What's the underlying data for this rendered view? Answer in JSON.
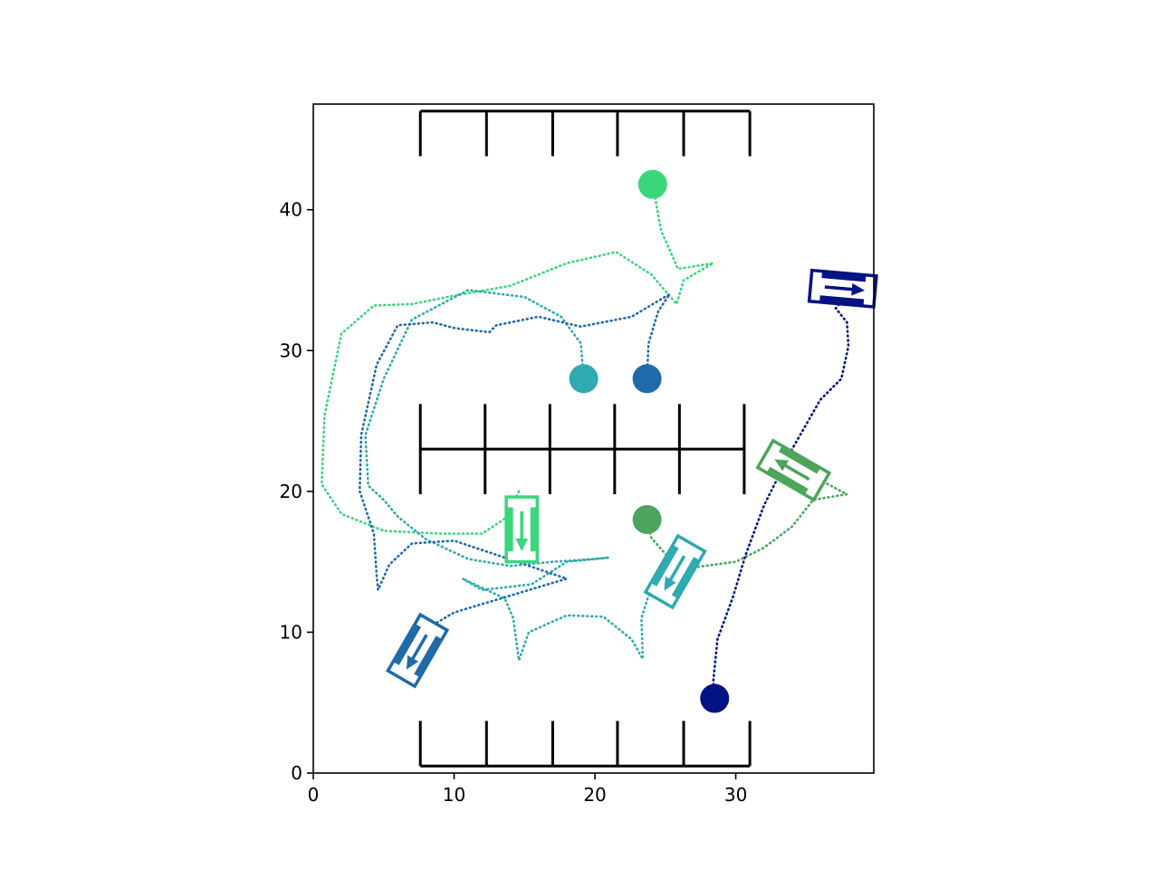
{
  "chart_data": {
    "type": "scatter",
    "title": "",
    "xlabel": "",
    "ylabel": "",
    "xlim": [
      0,
      39.8
    ],
    "ylim": [
      0,
      47.5
    ],
    "grid": false,
    "x_ticks": [
      0,
      10,
      20,
      30
    ],
    "y_ticks": [
      0,
      10,
      20,
      30,
      40
    ],
    "x_tick_labels": [
      "0",
      "10",
      "20",
      "30"
    ],
    "y_tick_labels": [
      "0",
      "10",
      "20",
      "30",
      "40"
    ],
    "parking_lines": [
      {
        "name": "top-row-rail",
        "x": [
          7.6,
          31.0
        ],
        "y": [
          47.0,
          47.0
        ]
      },
      {
        "name": "top-row-divider-1",
        "x": [
          7.6,
          7.6
        ],
        "y": [
          43.8,
          47.0
        ]
      },
      {
        "name": "top-row-divider-2",
        "x": [
          12.3,
          12.3
        ],
        "y": [
          43.8,
          47.0
        ]
      },
      {
        "name": "top-row-divider-3",
        "x": [
          17.0,
          17.0
        ],
        "y": [
          43.8,
          47.0
        ]
      },
      {
        "name": "top-row-divider-4",
        "x": [
          21.6,
          21.6
        ],
        "y": [
          43.8,
          47.0
        ]
      },
      {
        "name": "top-row-divider-5",
        "x": [
          26.3,
          26.3
        ],
        "y": [
          43.8,
          47.0
        ]
      },
      {
        "name": "top-row-divider-6",
        "x": [
          31.0,
          31.0
        ],
        "y": [
          43.8,
          47.0
        ]
      },
      {
        "name": "middle-row-rail",
        "x": [
          7.6,
          30.6
        ],
        "y": [
          23.0,
          23.0
        ]
      },
      {
        "name": "middle-row-divider-1",
        "x": [
          7.6,
          7.6
        ],
        "y": [
          19.8,
          26.2
        ]
      },
      {
        "name": "middle-row-divider-2",
        "x": [
          12.2,
          12.2
        ],
        "y": [
          19.8,
          26.2
        ]
      },
      {
        "name": "middle-row-divider-3",
        "x": [
          16.8,
          16.8
        ],
        "y": [
          19.8,
          26.2
        ]
      },
      {
        "name": "middle-row-divider-4",
        "x": [
          21.4,
          21.4
        ],
        "y": [
          19.8,
          26.2
        ]
      },
      {
        "name": "middle-row-divider-5",
        "x": [
          26.0,
          26.0
        ],
        "y": [
          19.8,
          26.2
        ]
      },
      {
        "name": "middle-row-divider-6",
        "x": [
          30.6,
          30.6
        ],
        "y": [
          19.8,
          26.2
        ]
      },
      {
        "name": "bottom-row-rail",
        "x": [
          7.6,
          31.0
        ],
        "y": [
          0.5,
          0.5
        ]
      },
      {
        "name": "bottom-row-divider-1",
        "x": [
          7.6,
          7.6
        ],
        "y": [
          0.5,
          3.7
        ]
      },
      {
        "name": "bottom-row-divider-2",
        "x": [
          12.3,
          12.3
        ],
        "y": [
          0.5,
          3.7
        ]
      },
      {
        "name": "bottom-row-divider-3",
        "x": [
          17.0,
          17.0
        ],
        "y": [
          0.5,
          3.7
        ]
      },
      {
        "name": "bottom-row-divider-4",
        "x": [
          21.6,
          21.6
        ],
        "y": [
          0.5,
          3.7
        ]
      },
      {
        "name": "bottom-row-divider-5",
        "x": [
          26.3,
          26.3
        ],
        "y": [
          0.5,
          3.7
        ]
      },
      {
        "name": "bottom-row-divider-6",
        "x": [
          31.0,
          31.0
        ],
        "y": [
          0.5,
          3.7
        ]
      }
    ],
    "series": [
      {
        "color": "#3ad67c",
        "start": [
          24.1,
          41.8
        ],
        "vehicle": {
          "x": 14.8,
          "y": 17.3,
          "heading_deg": -90
        },
        "path": [
          [
            24.1,
            41.8
          ],
          [
            24.7,
            38.5
          ],
          [
            25.9,
            35.8
          ],
          [
            28.4,
            36.2
          ],
          [
            26.3,
            35.0
          ],
          [
            25.8,
            33.3
          ],
          [
            24.0,
            35.4
          ],
          [
            21.5,
            37.0
          ],
          [
            18.0,
            36.2
          ],
          [
            14.0,
            34.6
          ],
          [
            10.0,
            33.9
          ],
          [
            7.0,
            33.3
          ],
          [
            4.3,
            33.2
          ],
          [
            2.0,
            31.2
          ],
          [
            0.8,
            25.4
          ],
          [
            0.6,
            20.5
          ],
          [
            2.0,
            18.4
          ],
          [
            5.0,
            17.2
          ],
          [
            9.0,
            17.0
          ],
          [
            12.0,
            17.0
          ],
          [
            13.8,
            18.2
          ],
          [
            14.6,
            20.0
          ]
        ]
      },
      {
        "color": "#2eaab0",
        "start": [
          19.2,
          28.0
        ],
        "vehicle": {
          "x": 25.7,
          "y": 14.3,
          "heading_deg": -120
        },
        "path": [
          [
            19.2,
            28.0
          ],
          [
            19.0,
            30.5
          ],
          [
            17.6,
            32.4
          ],
          [
            15.0,
            33.8
          ],
          [
            11.0,
            34.3
          ],
          [
            7.0,
            32.2
          ],
          [
            5.0,
            28.0
          ],
          [
            3.7,
            24.0
          ],
          [
            3.9,
            20.4
          ],
          [
            5.0,
            19.4
          ],
          [
            6.0,
            18.2
          ],
          [
            8.0,
            16.6
          ],
          [
            11.0,
            15.2
          ],
          [
            14.0,
            14.7
          ],
          [
            17.0,
            15.0
          ],
          [
            20.0,
            15.2
          ],
          [
            21.0,
            15.3
          ],
          [
            18.0,
            15.0
          ],
          [
            15.5,
            13.4
          ],
          [
            12.0,
            13.0
          ],
          [
            10.6,
            13.8
          ],
          [
            13.6,
            12.4
          ],
          [
            14.2,
            11.0
          ],
          [
            14.6,
            8.0
          ],
          [
            15.3,
            10.0
          ],
          [
            18.0,
            11.2
          ],
          [
            20.6,
            11.1
          ],
          [
            22.6,
            9.5
          ],
          [
            23.4,
            8.1
          ],
          [
            23.3,
            11.0
          ],
          [
            23.8,
            12.6
          ],
          [
            25.0,
            13.6
          ],
          [
            25.9,
            15.2
          ]
        ]
      },
      {
        "color": "#1f6ba9",
        "start": [
          23.7,
          28.0
        ],
        "vehicle": {
          "x": 7.4,
          "y": 8.7,
          "heading_deg": -120
        },
        "path": [
          [
            23.7,
            28.0
          ],
          [
            23.8,
            30.5
          ],
          [
            24.5,
            32.8
          ],
          [
            25.3,
            34.0
          ],
          [
            22.6,
            32.4
          ],
          [
            19.0,
            31.7
          ],
          [
            16.0,
            32.4
          ],
          [
            13.0,
            31.8
          ],
          [
            12.5,
            31.3
          ],
          [
            10.0,
            31.6
          ],
          [
            8.5,
            32.0
          ],
          [
            6.0,
            31.8
          ],
          [
            4.5,
            29.0
          ],
          [
            3.4,
            24.0
          ],
          [
            3.3,
            20.0
          ],
          [
            4.3,
            17.0
          ],
          [
            4.5,
            14.0
          ],
          [
            4.6,
            13.0
          ],
          [
            5.4,
            14.8
          ],
          [
            7.0,
            16.3
          ],
          [
            10.0,
            16.5
          ],
          [
            13.0,
            15.5
          ],
          [
            18.0,
            13.8
          ],
          [
            16.0,
            13.2
          ],
          [
            13.0,
            12.3
          ],
          [
            10.0,
            11.4
          ],
          [
            8.3,
            10.4
          ]
        ]
      },
      {
        "color": "#4da55b",
        "start": [
          23.7,
          18.0
        ],
        "vehicle": {
          "x": 34.1,
          "y": 21.5,
          "heading_deg": 150
        },
        "path": [
          [
            23.7,
            18.0
          ],
          [
            24.0,
            16.7
          ],
          [
            25.5,
            15.0
          ],
          [
            27.0,
            14.6
          ],
          [
            30.0,
            15.0
          ],
          [
            32.0,
            16.0
          ],
          [
            34.0,
            17.5
          ],
          [
            35.5,
            19.4
          ],
          [
            37.9,
            19.8
          ],
          [
            36.0,
            20.8
          ],
          [
            34.5,
            21.4
          ]
        ]
      },
      {
        "color": "#031383",
        "start": [
          28.5,
          5.3
        ],
        "vehicle": {
          "x": 37.6,
          "y": 34.4,
          "heading_deg": -5
        },
        "path": [
          [
            28.5,
            5.3
          ],
          [
            28.4,
            6.5
          ],
          [
            28.7,
            9.5
          ],
          [
            29.8,
            12.5
          ],
          [
            30.7,
            15.5
          ],
          [
            32.0,
            19.0
          ],
          [
            34.0,
            23.0
          ],
          [
            36.0,
            26.5
          ],
          [
            37.5,
            28.0
          ],
          [
            38.0,
            30.3
          ],
          [
            37.9,
            32.0
          ],
          [
            37.1,
            33.0
          ],
          [
            38.3,
            34.5
          ]
        ]
      }
    ]
  }
}
